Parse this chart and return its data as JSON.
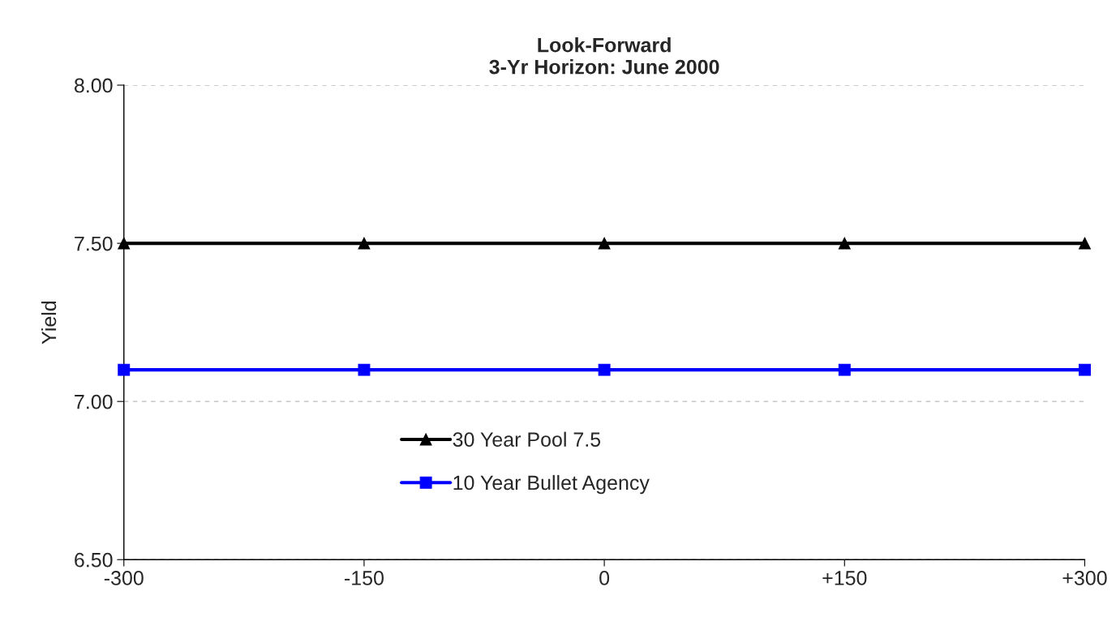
{
  "chart_data": {
    "type": "line",
    "title": "Look-Forward\n3-Yr Horizon: June 2000",
    "ylabel": "Yield",
    "categories": [
      "-300",
      "-150",
      "0",
      "+150",
      "+300"
    ],
    "series": [
      {
        "name": "30 Year Pool 7.5",
        "color": "#000000",
        "marker": "triangle",
        "values": [
          7.5,
          7.5,
          7.5,
          7.5,
          7.5
        ]
      },
      {
        "name": "10 Year Bullet Agency",
        "color": "#0000ff",
        "marker": "square",
        "values": [
          7.1,
          7.1,
          7.1,
          7.1,
          7.1
        ]
      }
    ],
    "ylim": [
      6.5,
      8.0
    ],
    "yticks": [
      {
        "value": 6.5,
        "label": "6.50"
      },
      {
        "value": 7.0,
        "label": "7.00"
      },
      {
        "value": 7.5,
        "label": "7.50"
      },
      {
        "value": 8.0,
        "label": "8.00"
      }
    ],
    "grid": "y",
    "legend": "bottom",
    "line_style": "solid"
  }
}
